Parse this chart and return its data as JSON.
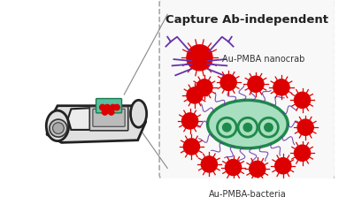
{
  "title": "Capture Ab-independent",
  "label_nanocrab": "Au-PMBA nanocrab",
  "label_bacteria": "Au-PMBA-bacteria",
  "bg_color": "#ffffff",
  "box_bg": "#f8f8f8",
  "box_border": "#aaaaaa",
  "bacteria_fill": "#a8dfc0",
  "bacteria_border": "#1e8a4a",
  "bacteria_inner_fill": "#a8dfc0",
  "bacteria_inner_border": "#1e8a4a",
  "red_circle": "#dd0000",
  "crab_color": "#6633aa",
  "title_fontsize": 9.5,
  "label_fontsize": 7.0
}
